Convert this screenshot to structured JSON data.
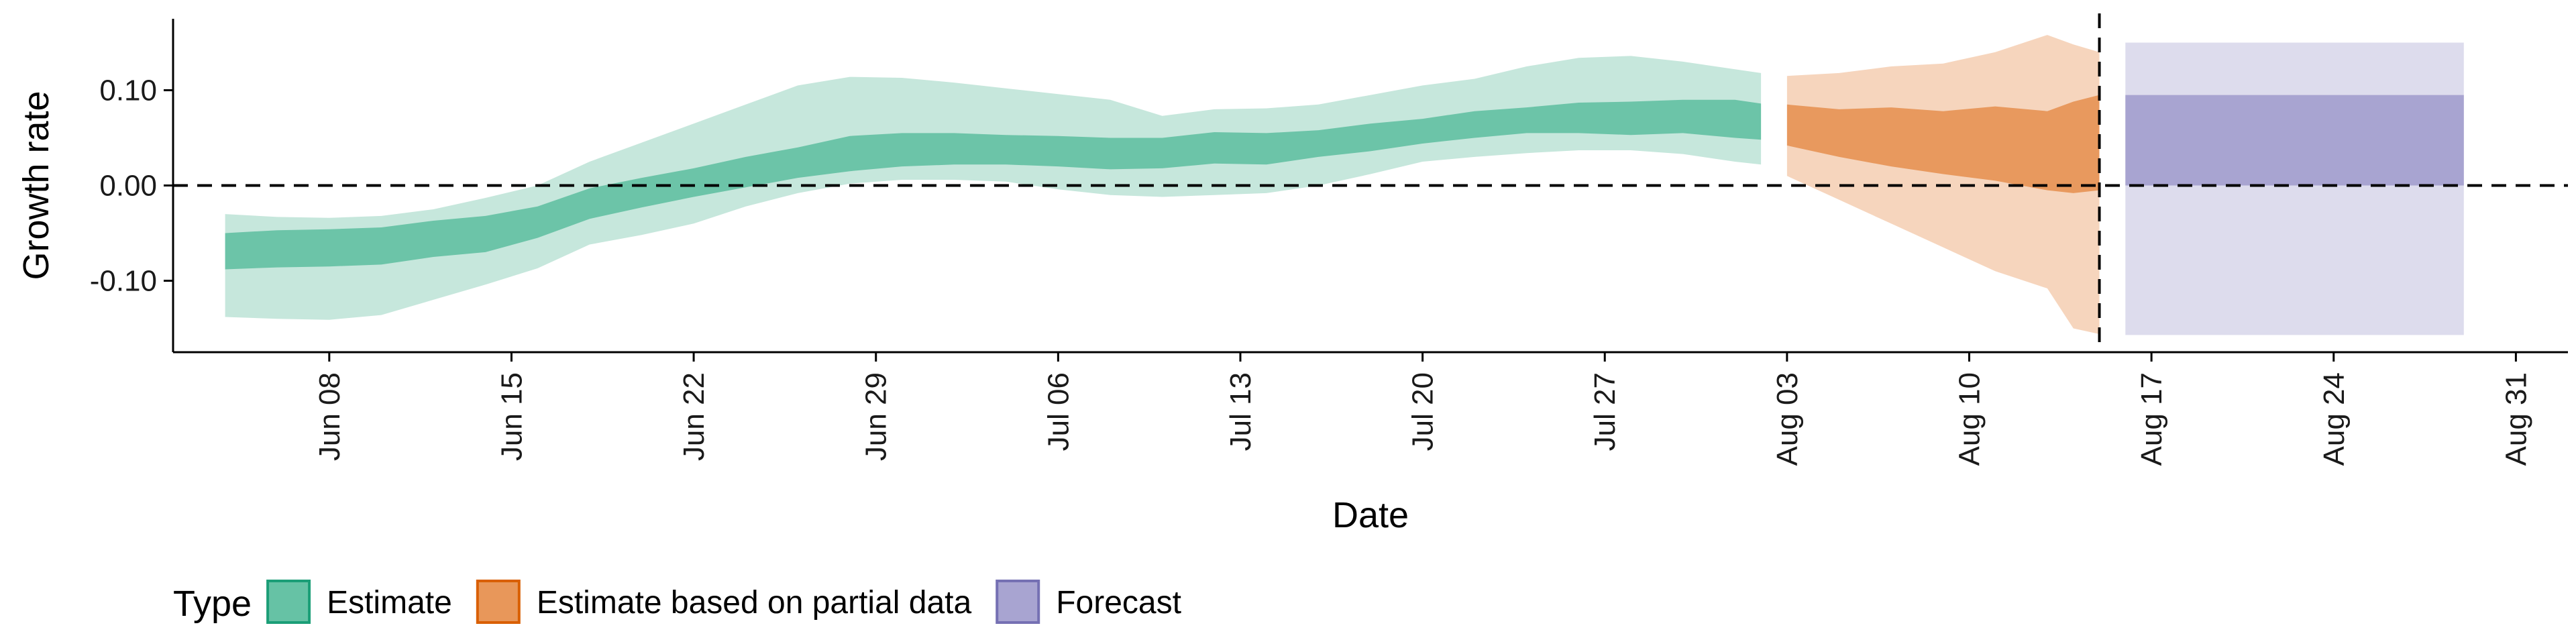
{
  "chart_data": {
    "type": "area",
    "x_label": "Date",
    "y_label": "Growth rate",
    "x_range": [
      "2020-06-02",
      "2020-09-02"
    ],
    "y_range": [
      -0.175,
      0.175
    ],
    "y_ticks": [
      {
        "value": -0.1,
        "label": "-0.10"
      },
      {
        "value": 0.0,
        "label": "0.00"
      },
      {
        "value": 0.1,
        "label": "0.10"
      }
    ],
    "x_ticks": [
      {
        "date": "2020-06-08",
        "label": "Jun 08"
      },
      {
        "date": "2020-06-15",
        "label": "Jun 15"
      },
      {
        "date": "2020-06-22",
        "label": "Jun 22"
      },
      {
        "date": "2020-06-29",
        "label": "Jun 29"
      },
      {
        "date": "2020-07-06",
        "label": "Jul 06"
      },
      {
        "date": "2020-07-13",
        "label": "Jul 13"
      },
      {
        "date": "2020-07-20",
        "label": "Jul 20"
      },
      {
        "date": "2020-07-27",
        "label": "Jul 27"
      },
      {
        "date": "2020-08-03",
        "label": "Aug 03"
      },
      {
        "date": "2020-08-10",
        "label": "Aug 10"
      },
      {
        "date": "2020-08-17",
        "label": "Aug 17"
      },
      {
        "date": "2020-08-24",
        "label": "Aug 24"
      },
      {
        "date": "2020-08-31",
        "label": "Aug 31"
      }
    ],
    "reference_lines": [
      {
        "orientation": "horizontal",
        "y": 0,
        "style": "dashed"
      },
      {
        "orientation": "vertical",
        "x": "2020-08-15",
        "style": "dashed"
      }
    ],
    "legend": {
      "title": "Type",
      "position": "bottom",
      "entries": [
        {
          "label": "Estimate",
          "color": "#66c2a5",
          "border": "#1b9e77"
        },
        {
          "label": "Estimate based on partial data",
          "color": "#e8975a",
          "border": "#d95f02"
        },
        {
          "label": "Forecast",
          "color": "#a8a4d1",
          "border": "#7570b3"
        }
      ]
    },
    "series": [
      {
        "name": "Estimate",
        "color_inner": "#6cc4a8",
        "color_outer": "#c6e7dc",
        "points": [
          {
            "date": "2020-06-04",
            "lo90": -0.138,
            "lo50": -0.088,
            "hi50": -0.05,
            "hi90": -0.03
          },
          {
            "date": "2020-06-06",
            "lo90": -0.14,
            "lo50": -0.086,
            "hi50": -0.047,
            "hi90": -0.033
          },
          {
            "date": "2020-06-08",
            "lo90": -0.141,
            "lo50": -0.085,
            "hi50": -0.046,
            "hi90": -0.034
          },
          {
            "date": "2020-06-10",
            "lo90": -0.136,
            "lo50": -0.083,
            "hi50": -0.044,
            "hi90": -0.032
          },
          {
            "date": "2020-06-12",
            "lo90": -0.12,
            "lo50": -0.075,
            "hi50": -0.037,
            "hi90": -0.025
          },
          {
            "date": "2020-06-14",
            "lo90": -0.104,
            "lo50": -0.07,
            "hi50": -0.032,
            "hi90": -0.013
          },
          {
            "date": "2020-06-16",
            "lo90": -0.087,
            "lo50": -0.055,
            "hi50": -0.022,
            "hi90": 0.0
          },
          {
            "date": "2020-06-18",
            "lo90": -0.062,
            "lo50": -0.035,
            "hi50": -0.003,
            "hi90": 0.025
          },
          {
            "date": "2020-06-20",
            "lo90": -0.052,
            "lo50": -0.023,
            "hi50": 0.008,
            "hi90": 0.045
          },
          {
            "date": "2020-06-22",
            "lo90": -0.04,
            "lo50": -0.012,
            "hi50": 0.018,
            "hi90": 0.065
          },
          {
            "date": "2020-06-24",
            "lo90": -0.022,
            "lo50": -0.002,
            "hi50": 0.03,
            "hi90": 0.085
          },
          {
            "date": "2020-06-26",
            "lo90": -0.008,
            "lo50": 0.008,
            "hi50": 0.04,
            "hi90": 0.105
          },
          {
            "date": "2020-06-28",
            "lo90": 0.002,
            "lo50": 0.015,
            "hi50": 0.052,
            "hi90": 0.114
          },
          {
            "date": "2020-06-30",
            "lo90": 0.006,
            "lo50": 0.02,
            "hi50": 0.055,
            "hi90": 0.113
          },
          {
            "date": "2020-07-02",
            "lo90": 0.006,
            "lo50": 0.022,
            "hi50": 0.055,
            "hi90": 0.108
          },
          {
            "date": "2020-07-04",
            "lo90": 0.004,
            "lo50": 0.022,
            "hi50": 0.053,
            "hi90": 0.102
          },
          {
            "date": "2020-07-06",
            "lo90": -0.004,
            "lo50": 0.02,
            "hi50": 0.052,
            "hi90": 0.096
          },
          {
            "date": "2020-07-08",
            "lo90": -0.01,
            "lo50": 0.017,
            "hi50": 0.05,
            "hi90": 0.09
          },
          {
            "date": "2020-07-10",
            "lo90": -0.012,
            "lo50": 0.018,
            "hi50": 0.05,
            "hi90": 0.073
          },
          {
            "date": "2020-07-12",
            "lo90": -0.01,
            "lo50": 0.023,
            "hi50": 0.056,
            "hi90": 0.08
          },
          {
            "date": "2020-07-14",
            "lo90": -0.008,
            "lo50": 0.022,
            "hi50": 0.055,
            "hi90": 0.081
          },
          {
            "date": "2020-07-16",
            "lo90": 0.0,
            "lo50": 0.03,
            "hi50": 0.058,
            "hi90": 0.085
          },
          {
            "date": "2020-07-18",
            "lo90": 0.012,
            "lo50": 0.036,
            "hi50": 0.065,
            "hi90": 0.095
          },
          {
            "date": "2020-07-20",
            "lo90": 0.025,
            "lo50": 0.044,
            "hi50": 0.07,
            "hi90": 0.105
          },
          {
            "date": "2020-07-22",
            "lo90": 0.03,
            "lo50": 0.05,
            "hi50": 0.078,
            "hi90": 0.112
          },
          {
            "date": "2020-07-24",
            "lo90": 0.034,
            "lo50": 0.055,
            "hi50": 0.082,
            "hi90": 0.125
          },
          {
            "date": "2020-07-26",
            "lo90": 0.037,
            "lo50": 0.055,
            "hi50": 0.087,
            "hi90": 0.134
          },
          {
            "date": "2020-07-28",
            "lo90": 0.037,
            "lo50": 0.053,
            "hi50": 0.088,
            "hi90": 0.136
          },
          {
            "date": "2020-07-30",
            "lo90": 0.033,
            "lo50": 0.055,
            "hi50": 0.09,
            "hi90": 0.13
          },
          {
            "date": "2020-08-01",
            "lo90": 0.025,
            "lo50": 0.05,
            "hi50": 0.09,
            "hi90": 0.122
          },
          {
            "date": "2020-08-02",
            "lo90": 0.022,
            "lo50": 0.048,
            "hi50": 0.086,
            "hi90": 0.118
          }
        ]
      },
      {
        "name": "Estimate based on partial data",
        "color_inner": "#e8995e",
        "color_outer": "#f6d5bd",
        "points": [
          {
            "date": "2020-08-03",
            "lo90": 0.01,
            "lo50": 0.042,
            "hi50": 0.085,
            "hi90": 0.115
          },
          {
            "date": "2020-08-05",
            "lo90": -0.015,
            "lo50": 0.03,
            "hi50": 0.08,
            "hi90": 0.118
          },
          {
            "date": "2020-08-07",
            "lo90": -0.04,
            "lo50": 0.02,
            "hi50": 0.082,
            "hi90": 0.125
          },
          {
            "date": "2020-08-09",
            "lo90": -0.065,
            "lo50": 0.012,
            "hi50": 0.078,
            "hi90": 0.128
          },
          {
            "date": "2020-08-11",
            "lo90": -0.09,
            "lo50": 0.005,
            "hi50": 0.083,
            "hi90": 0.14
          },
          {
            "date": "2020-08-13",
            "lo90": -0.108,
            "lo50": -0.005,
            "hi50": 0.078,
            "hi90": 0.158
          },
          {
            "date": "2020-08-14",
            "lo90": -0.15,
            "lo50": -0.008,
            "hi50": 0.088,
            "hi90": 0.148
          },
          {
            "date": "2020-08-15",
            "lo90": -0.156,
            "lo50": -0.005,
            "hi50": 0.095,
            "hi90": 0.14
          }
        ]
      },
      {
        "name": "Forecast",
        "color_inner": "#a8a4d1",
        "color_outer": "#dddced",
        "points": [
          {
            "date": "2020-08-16",
            "lo90": -0.157,
            "lo50": 0.0,
            "hi50": 0.095,
            "hi90": 0.15
          },
          {
            "date": "2020-08-29",
            "lo90": -0.157,
            "lo50": 0.0,
            "hi50": 0.095,
            "hi90": 0.15
          }
        ]
      }
    ]
  }
}
